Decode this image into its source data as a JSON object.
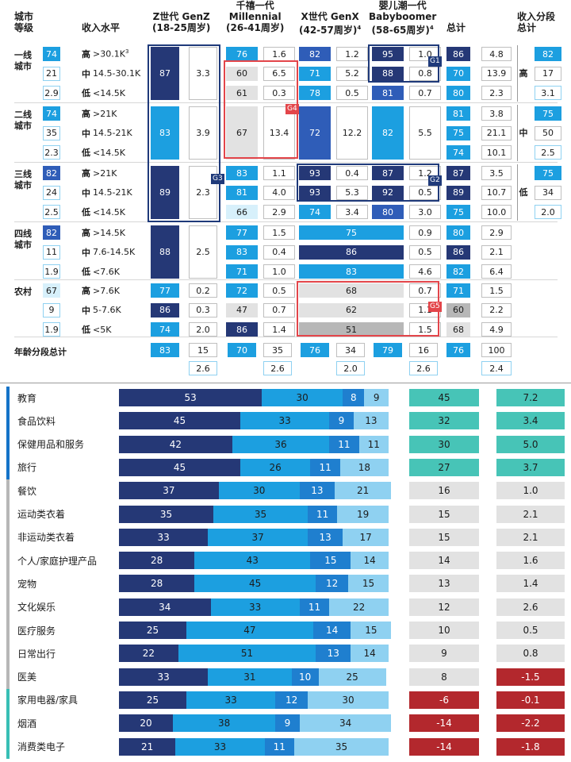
{
  "colors": {
    "dark": "#253876",
    "mid": "#1c9fe0",
    "light": "#8fd1f1",
    "lightblue_bg": "#d7f0fb",
    "navy_mid": "#2f5db8",
    "grey": "#b7b7b7",
    "lightgrey": "#e2e2e2",
    "teal": "#47c4b7",
    "red": "#b3282d",
    "frame_dark": "#1f3a7a",
    "frame_red": "#e3454a",
    "sidebar_blue": "#1473c8",
    "sidebar_grey": "#b7b7b7",
    "sidebar_teal": "#38bfb5"
  },
  "chart_data": [
    {
      "type": "table",
      "headers": {
        "city": "城市\n等级",
        "income": "收入水平",
        "genz": "Z世代 GenZ\n(18-25周岁)",
        "mill": "千禧一代\nMillennial\n(26-41周岁)",
        "genx": "X世代 GenX\n(42-57周岁)",
        "genx_sup": "4",
        "boom": "婴儿潮一代\nBabyboomer\n(58-65周岁)",
        "boom_sup": "4",
        "total": "总计",
        "inc_total": "收入分段\n总计"
      },
      "tiers": [
        {
          "name": "一线\n城市",
          "rows": [
            {
              "pct": 74,
              "level": "高",
              "range": ">30.1K",
              "sup": "3",
              "genz": [
                87,
                3.3
              ],
              "mill": [
                76,
                1.6
              ],
              "genx": [
                82,
                1.2
              ],
              "boom": [
                95,
                1.0
              ],
              "total": [
                86,
                4.8
              ]
            },
            {
              "pct": 21,
              "level": "中",
              "range": "14.5-30.1K",
              "mill": [
                60,
                6.5
              ],
              "genx": [
                71,
                5.2
              ],
              "boom": [
                88,
                0.8
              ],
              "total": [
                70,
                13.9
              ]
            },
            {
              "pct": 2.9,
              "level": "低",
              "range": "<14.5K",
              "mill": [
                61,
                0.3
              ],
              "genx": [
                78,
                0.5
              ],
              "boom": [
                81,
                0.7
              ],
              "total": [
                80,
                2.3
              ]
            }
          ]
        },
        {
          "name": "二线\n城市",
          "rows": [
            {
              "pct": 74,
              "level": "高",
              "range": ">21K",
              "genz": [
                83,
                3.9
              ],
              "mill": [
                67,
                13.4
              ],
              "genx": [
                72,
                12.2
              ],
              "boom": [
                82,
                5.5
              ],
              "total": [
                81,
                3.8
              ]
            },
            {
              "pct": 35,
              "level": "中",
              "range": "14.5-21K",
              "total": [
                75,
                21.1
              ]
            },
            {
              "pct": 2.3,
              "level": "低",
              "range": "<14.5K",
              "total": [
                74,
                10.1
              ]
            }
          ]
        },
        {
          "name": "三线\n城市",
          "rows": [
            {
              "pct": 82,
              "level": "高",
              "range": ">21K",
              "genz": [
                89,
                2.3
              ],
              "mill": [
                83,
                1.1
              ],
              "genx": [
                93,
                0.4
              ],
              "boom": [
                87,
                1.2
              ],
              "total": [
                87,
                3.5
              ]
            },
            {
              "pct": 24,
              "level": "中",
              "range": "14.5-21K",
              "mill": [
                81,
                4.0
              ],
              "genx": [
                93,
                5.3
              ],
              "boom": [
                92,
                0.5
              ],
              "total": [
                89,
                10.7
              ]
            },
            {
              "pct": 2.5,
              "level": "低",
              "range": "<14.5K",
              "mill": [
                66,
                2.9
              ],
              "genx": [
                74,
                3.4
              ],
              "boom": [
                80,
                3.0
              ],
              "total": [
                75,
                10.0
              ]
            }
          ]
        },
        {
          "name": "四线\n城市",
          "rows": [
            {
              "pct": 82,
              "level": "高",
              "range": ">14.5K",
              "genz": [
                88,
                2.5
              ],
              "mill": [
                77,
                1.5
              ],
              "genx_boom": 75,
              "boom_b": 0.9,
              "total": [
                80,
                2.9
              ]
            },
            {
              "pct": 11,
              "level": "中",
              "range": "7.6-14.5K",
              "mill": [
                83,
                0.4
              ],
              "genx_boom": 86,
              "boom_b": 0.5,
              "total": [
                86,
                2.1
              ]
            },
            {
              "pct": 1.9,
              "level": "低",
              "range": "<7.6K",
              "mill": [
                71,
                1.0
              ],
              "genx_boom": 83,
              "boom_b": 4.6,
              "total": [
                82,
                6.4
              ]
            }
          ]
        },
        {
          "name": "农村",
          "rows": [
            {
              "pct": 67,
              "level": "高",
              "range": ">7.6K",
              "genz": [
                77,
                0.2
              ],
              "mill": [
                72,
                0.5
              ],
              "genx_boom": 68,
              "boom_b": 0.7,
              "total": [
                71,
                1.5
              ]
            },
            {
              "pct": 9,
              "level": "中",
              "range": "5-7.6K",
              "genz": [
                86,
                0.3
              ],
              "mill": [
                47,
                0.7
              ],
              "genx_boom": 62,
              "boom_b": 1.1,
              "total": [
                60,
                2.2
              ]
            },
            {
              "pct": 1.9,
              "level": "低",
              "range": "<5K",
              "genz": [
                74,
                2.0
              ],
              "mill": [
                86,
                1.4
              ],
              "genx_boom": 51,
              "boom_b": 1.5,
              "total": [
                68,
                4.9
              ]
            }
          ]
        }
      ],
      "income_totals": [
        {
          "level": "高",
          "values": [
            82,
            17,
            3.1
          ]
        },
        {
          "level": "中",
          "values": [
            75,
            50,
            2.5
          ]
        },
        {
          "level": "低",
          "values": [
            75,
            34,
            2.0
          ]
        }
      ],
      "age_totals": {
        "label": "年龄分段总计",
        "genz": [
          83,
          15,
          2.6
        ],
        "mill": [
          70,
          35,
          2.6
        ],
        "genx": [
          76,
          34,
          2.0
        ],
        "boom": [
          79,
          16,
          2.6
        ],
        "total": [
          76,
          100,
          2.4
        ]
      },
      "groups": [
        "G1",
        "G2",
        "G3",
        "G4",
        "G5"
      ]
    },
    {
      "type": "bar",
      "stacked": true,
      "categories": [
        "教育",
        "食品饮料",
        "保健用品和服务",
        "旅行",
        "餐饮",
        "运动类衣着",
        "非运动类衣着",
        "个人/家庭护理产品",
        "宠物",
        "文化娱乐",
        "医疗服务",
        "日常出行",
        "医美",
        "家用电器/家具",
        "烟酒",
        "消费类电子"
      ],
      "series": [
        {
          "values": [
            53,
            45,
            42,
            45,
            37,
            35,
            33,
            28,
            28,
            34,
            25,
            22,
            33,
            25,
            20,
            21
          ]
        },
        {
          "values": [
            30,
            33,
            36,
            26,
            30,
            35,
            37,
            43,
            45,
            33,
            47,
            51,
            31,
            33,
            38,
            33
          ]
        },
        {
          "values": [
            8,
            9,
            11,
            11,
            13,
            11,
            13,
            15,
            12,
            11,
            14,
            13,
            10,
            12,
            9,
            11
          ]
        },
        {
          "values": [
            9,
            13,
            11,
            18,
            21,
            19,
            17,
            14,
            15,
            22,
            15,
            14,
            25,
            30,
            34,
            35
          ]
        }
      ],
      "col_a": [
        45,
        32,
        30,
        27,
        16,
        15,
        15,
        14,
        13,
        12,
        10,
        9,
        8,
        -6,
        -14,
        -14
      ],
      "col_b": [
        7.2,
        3.4,
        5.0,
        3.7,
        1.0,
        2.1,
        2.1,
        1.6,
        1.4,
        2.6,
        0.5,
        0.8,
        -1.5,
        -0.1,
        -2.2,
        -1.8
      ],
      "groups": [
        [
          0,
          3
        ],
        [
          4,
          12
        ],
        [
          13,
          15
        ]
      ]
    }
  ]
}
